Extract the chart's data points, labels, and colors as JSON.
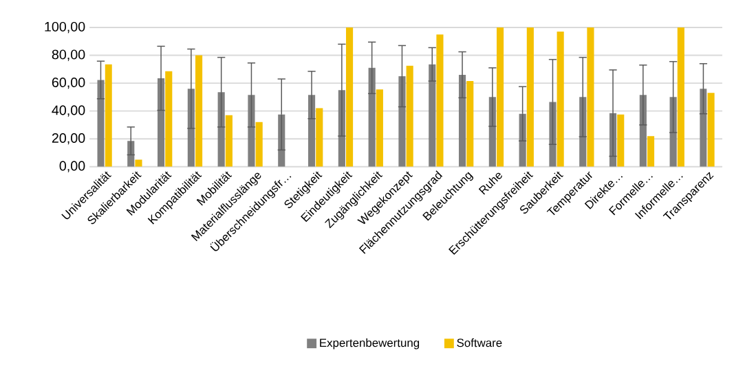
{
  "chart_data": {
    "type": "bar",
    "categories": [
      "Universalität",
      "Skalierbarkeit",
      "Modularität",
      "Kompatibilität",
      "Mobilität",
      "Materialflusslänge",
      "Überschneidungsfr…",
      "Stetigkeit",
      "Eindeutigkeit",
      "Zugänglichkeit",
      "Wegekonzept",
      "Flächennutzungsgrad",
      "Beleuchtung",
      "Ruhe",
      "Erschütterungsfreiheit",
      "Sauberkeit",
      "Temperatur",
      "Direkte…",
      "Formelle…",
      "Informelle…",
      "Transparenz"
    ],
    "series": [
      {
        "name": "Expertenbewertung",
        "color": "#7f7f7f",
        "values": [
          62.3,
          18.5,
          63.5,
          56,
          53.5,
          51.5,
          37.5,
          51.5,
          55,
          71,
          65,
          73.5,
          66,
          50,
          38,
          46.5,
          50,
          38.5,
          51.5,
          50,
          56
        ],
        "errors": [
          13.5,
          10,
          23,
          28.5,
          25,
          23,
          25.5,
          17,
          33,
          18.5,
          22,
          12,
          16.5,
          21,
          19.5,
          30.5,
          28.5,
          31,
          21.5,
          25.5,
          18
        ]
      },
      {
        "name": "Software",
        "color": "#f4c100",
        "values": [
          73.5,
          5,
          68.5,
          80,
          37,
          32,
          0,
          42,
          100,
          55.5,
          72.5,
          95,
          61.5,
          100,
          100,
          97,
          100,
          37.5,
          22,
          100,
          53
        ]
      }
    ],
    "ylim": [
      0,
      100
    ],
    "yticks": [
      {
        "value": 0,
        "label": "0,00"
      },
      {
        "value": 20,
        "label": "20,00"
      },
      {
        "value": 40,
        "label": "40,00"
      },
      {
        "value": 60,
        "label": "60,00"
      },
      {
        "value": 80,
        "label": "80,00"
      },
      {
        "value": 100,
        "label": "100,00"
      }
    ],
    "grid": "y",
    "legend": "bottom"
  }
}
